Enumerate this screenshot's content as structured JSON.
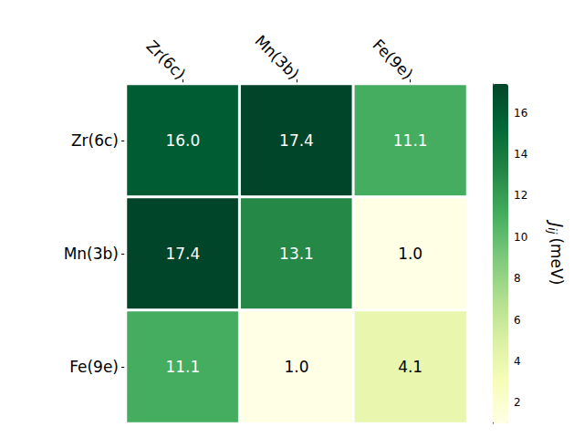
{
  "chart_data": {
    "type": "heatmap",
    "x_categories": [
      "Zr(6c)",
      "Mn(3b)",
      "Fe(9e)"
    ],
    "y_categories": [
      "Zr(6c)",
      "Mn(3b)",
      "Fe(9e)"
    ],
    "cells": [
      [
        16.0,
        17.4,
        11.1
      ],
      [
        17.4,
        13.1,
        1.0
      ],
      [
        11.1,
        1.0,
        4.1
      ]
    ],
    "value_labels": [
      [
        "16.0",
        "17.4",
        "11.1"
      ],
      [
        "17.4",
        "13.1",
        "1.0"
      ],
      [
        "11.1",
        "1.0",
        "4.1"
      ]
    ],
    "data_labels": true,
    "colorbar": {
      "label": {
        "text": "J",
        "subscript": "ij",
        "unit": "(meV)"
      },
      "range": [
        1.0,
        17.4
      ],
      "ticks": [
        2,
        4,
        6,
        8,
        10,
        12,
        14,
        16
      ]
    }
  }
}
